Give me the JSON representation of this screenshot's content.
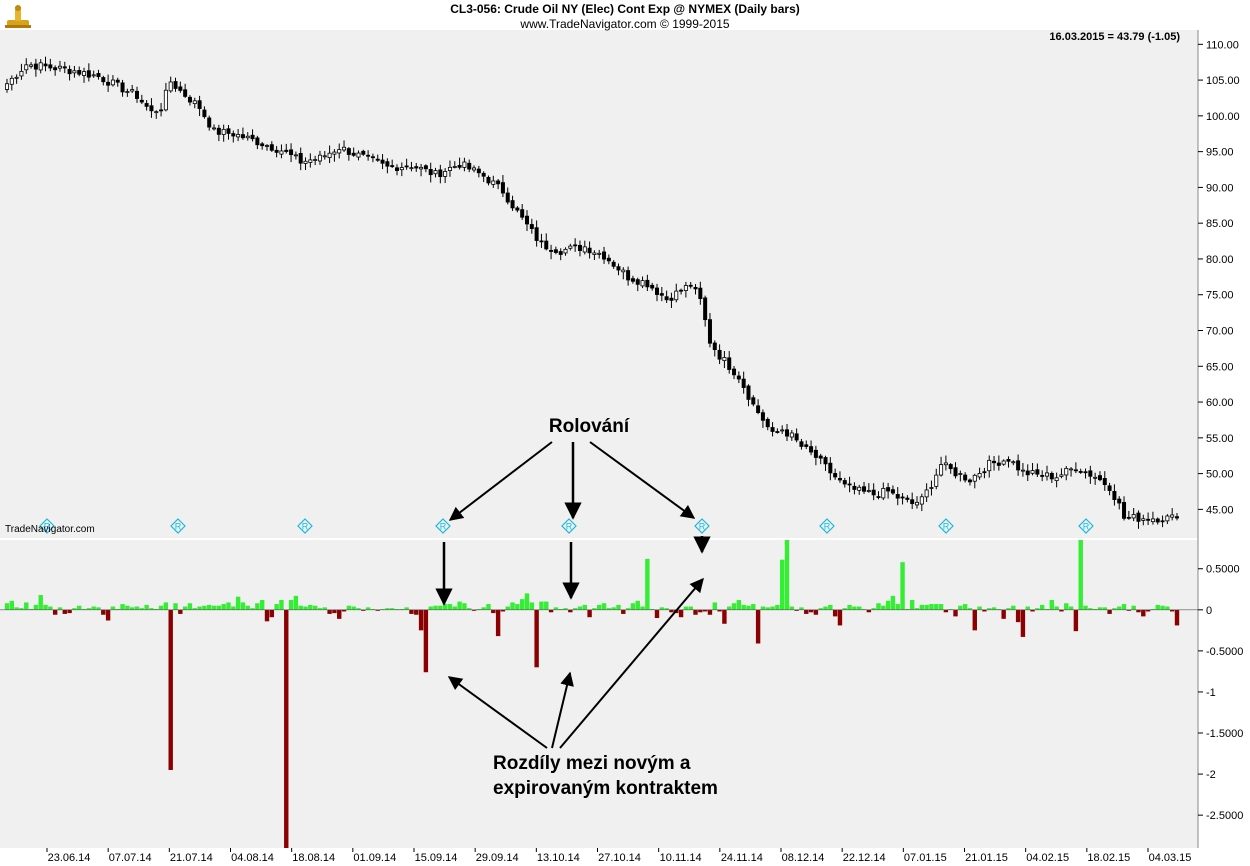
{
  "header": {
    "title": "CL3-056:  Crude Oil NY (Elec) Cont Exp @ NYMEX  (Daily bars)",
    "subtitle": "www.TradeNavigator.com © 1999-2015",
    "last_value": "16.03.2015 = 43.79 (-1.05)",
    "watermark": "TradeNavigator.com"
  },
  "colors": {
    "background": "#f0f0f0",
    "positive_bar": "#33ee33",
    "negative_bar": "#8b0000",
    "roll_marker": "#22b5d6"
  },
  "chart_data": [
    {
      "type": "candlestick",
      "title": "CL3-056:  Crude Oil NY (Elec) Cont Exp @ NYMEX  (Daily bars)",
      "ylim": [
        41,
        112
      ],
      "y_ticks": [
        "110.00",
        "105.00",
        "100.00",
        "95.00",
        "90.00",
        "85.00",
        "80.00",
        "75.00",
        "70.00",
        "65.00",
        "60.00",
        "55.00",
        "50.00",
        "45.00"
      ],
      "x_ticks": [
        "23.06.14",
        "07.07.14",
        "21.07.14",
        "04.08.14",
        "18.08.14",
        "01.09.14",
        "15.09.14",
        "29.09.14",
        "13.10.14",
        "27.10.14",
        "10.11.14",
        "24.11.14",
        "08.12.14",
        "22.12.14",
        "07.01.15",
        "21.01.15",
        "04.02.15",
        "18.02.15",
        "04.03.15"
      ],
      "close_anchors": [
        [
          0,
          104.5
        ],
        [
          4,
          107.2
        ],
        [
          9,
          106.8
        ],
        [
          14,
          106.3
        ],
        [
          19,
          105.5
        ],
        [
          24,
          103.8
        ],
        [
          27,
          102.8
        ],
        [
          30,
          100.5
        ],
        [
          32,
          101.2
        ],
        [
          34,
          104.8
        ],
        [
          36,
          103.5
        ],
        [
          40,
          101.2
        ],
        [
          43,
          97.8
        ],
        [
          47,
          97.5
        ],
        [
          52,
          96.4
        ],
        [
          57,
          95.2
        ],
        [
          61,
          93.6
        ],
        [
          65,
          94.1
        ],
        [
          69,
          95.6
        ],
        [
          74,
          94.2
        ],
        [
          79,
          92.8
        ],
        [
          84,
          93.1
        ],
        [
          89,
          91.8
        ],
        [
          94,
          93.3
        ],
        [
          99,
          91.6
        ],
        [
          103,
          89.5
        ],
        [
          107,
          85.6
        ],
        [
          111,
          82.0
        ],
        [
          115,
          81.2
        ],
        [
          120,
          81.7
        ],
        [
          124,
          80.5
        ],
        [
          129,
          77.5
        ],
        [
          133,
          76.6
        ],
        [
          137,
          74.4
        ],
        [
          140,
          75.6
        ],
        [
          142,
          76.4
        ],
        [
          144,
          74.2
        ],
        [
          146,
          68.5
        ],
        [
          148,
          66.5
        ],
        [
          152,
          63.6
        ],
        [
          155,
          59.6
        ],
        [
          157,
          57.6
        ],
        [
          159,
          55.4
        ],
        [
          161,
          56.2
        ],
        [
          163,
          55.2
        ],
        [
          165,
          53.8
        ],
        [
          168,
          52.3
        ],
        [
          171,
          50.2
        ],
        [
          174,
          48.2
        ],
        [
          177,
          47.5
        ],
        [
          180,
          47.1
        ],
        [
          183,
          47.5
        ],
        [
          186,
          46.3
        ],
        [
          188,
          45.8
        ],
        [
          190,
          46.3
        ],
        [
          192,
          48.6
        ],
        [
          194,
          51.3
        ],
        [
          197,
          50.1
        ],
        [
          200,
          49.2
        ],
        [
          204,
          51.3
        ],
        [
          208,
          52.1
        ],
        [
          211,
          50.2
        ],
        [
          214,
          49.8
        ],
        [
          218,
          49.6
        ],
        [
          222,
          50.9
        ],
        [
          226,
          49.6
        ],
        [
          229,
          48.2
        ],
        [
          231,
          45.6
        ],
        [
          232,
          43.8
        ]
      ],
      "last_value": 43.79
    },
    {
      "type": "bar",
      "name": "Rozdíly mezi novým a expirovaným kontraktem",
      "ylim": [
        -2.9,
        0.85
      ],
      "y_ticks": [
        "0.5000",
        "0",
        "-0.5000",
        "-1",
        "-1.5000",
        "-2",
        "-2.5000"
      ],
      "values": [
        0.08,
        0.11,
        0.03,
        0.02,
        0.09,
        0.01,
        0.06,
        0.18,
        0.06,
        0.04,
        -0.06,
        0.03,
        -0.05,
        -0.04,
        0.02,
        0.05,
        0.01,
        0.02,
        0.04,
        0.03,
        -0.06,
        -0.13,
        0.04,
        0.01,
        0.07,
        0.05,
        0.03,
        0.04,
        0.02,
        0.06,
        0.02,
        0.01,
        0.05,
        0.09,
        -1.95,
        0.08,
        -0.05,
        0.04,
        0.08,
        0.02,
        0.04,
        0.05,
        0.06,
        0.05,
        0.05,
        0.07,
        0.09,
        0.04,
        0.16,
        0.09,
        0.05,
        0.02,
        0.08,
        0.12,
        -0.14,
        -0.09,
        0.07,
        0.12,
        -2.9,
        0.12,
        0.17,
        0.05,
        0.04,
        0.06,
        0.05,
        0.02,
        0.03,
        -0.05,
        -0.04,
        -0.11,
        -0.02,
        0.05,
        0.04,
        0.02,
        -0.01,
        0.03,
        0.01,
        -0.01,
        0.01,
        0.02,
        0.02,
        0.01,
        0.01,
        0.03,
        -0.05,
        -0.06,
        -0.25,
        -0.76,
        0.04,
        0.05,
        0.05,
        0.07,
        0.07,
        0.04,
        0.1,
        0.08,
        0.02,
        -0.01,
        0.01,
        0.03,
        0.07,
        -0.04,
        -0.32,
        -0.02,
        0.04,
        0.09,
        0.07,
        0.13,
        0.2,
        0.09,
        -0.7,
        0.1,
        0.1,
        -0.03,
        0.03,
        0.01,
        0.02,
        -0.03,
        0.02,
        0.04,
        0.06,
        -0.09,
        0.02,
        0.06,
        0.08,
        0.02,
        0.03,
        0.06,
        -0.05,
        0.02,
        0.08,
        0.11,
        0.04,
        0.62,
        0.01,
        -0.1,
        0.03,
        0.02,
        -0.03,
        -0.04,
        -0.09,
        0.04,
        0.04,
        -0.06,
        -0.03,
        -0.02,
        -0.06,
        0.09,
        -0.02,
        -0.17,
        0.04,
        0.08,
        0.12,
        0.06,
        0.05,
        0.07,
        -0.41,
        0.04,
        0.03,
        0.04,
        0.06,
        0.61,
        0.85,
        0.04,
        -0.01,
        0.03,
        -0.05,
        -0.03,
        -0.06,
        0.02,
        0.04,
        0.06,
        -0.08,
        -0.19,
        0.02,
        0.06,
        0.04,
        0.04,
        0.01,
        -0.03,
        0.02,
        0.08,
        0.05,
        0.11,
        0.17,
        0.07,
        0.58,
        0.01,
        0.12,
        0.02,
        0.06,
        0.06,
        0.07,
        0.07,
        0.07,
        -0.03,
        0.01,
        -0.08,
        0.05,
        0.07,
        0.02,
        -0.25,
        0.04,
        -0.02,
        0.02,
        0.03,
        0.01,
        -0.11,
        0.02,
        0.05,
        -0.15,
        -0.33,
        0.04,
        -0.02,
        0.02,
        0.06,
        0.01,
        0.12,
        0.04,
        -0.02,
        0.08,
        0.04,
        -0.26,
        0.85,
        0.05,
        0.02,
        0.01,
        0.03,
        0.03,
        -0.05,
        0.02,
        0.04,
        0.07,
        -0.01,
        0.05,
        -0.03,
        -0.08,
        -0.02,
        0.01,
        0.06,
        0.05,
        0.04,
        -0.02,
        -0.19
      ],
      "roll_marker_dates": [
        "23.06.14",
        "21.07.14",
        "18.08.14",
        "15.09.14",
        "13.10.14",
        "24.11.14",
        "22.12.14",
        "21.01.15",
        "18.02.15"
      ],
      "annotation_top": "Rolování",
      "annotation_bottom_line1": "Rozdíly mezi novým a",
      "annotation_bottom_line2": "expirovaným kontraktem"
    }
  ]
}
